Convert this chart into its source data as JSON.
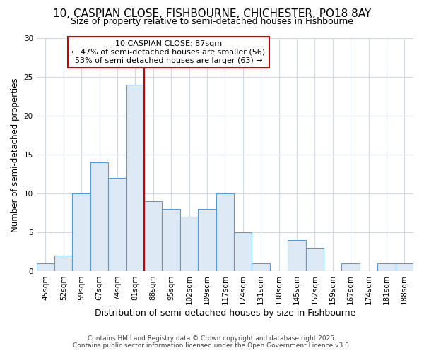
{
  "title1": "10, CASPIAN CLOSE, FISHBOURNE, CHICHESTER, PO18 8AY",
  "title2": "Size of property relative to semi-detached houses in Fishbourne",
  "xlabel": "Distribution of semi-detached houses by size in Fishbourne",
  "ylabel": "Number of semi-detached properties",
  "categories": [
    "45sqm",
    "52sqm",
    "59sqm",
    "67sqm",
    "74sqm",
    "81sqm",
    "88sqm",
    "95sqm",
    "102sqm",
    "109sqm",
    "117sqm",
    "124sqm",
    "131sqm",
    "138sqm",
    "145sqm",
    "152sqm",
    "159sqm",
    "167sqm",
    "174sqm",
    "181sqm",
    "188sqm"
  ],
  "values": [
    1,
    2,
    10,
    14,
    12,
    24,
    9,
    8,
    7,
    8,
    10,
    5,
    1,
    0,
    4,
    3,
    0,
    1,
    0,
    1,
    1
  ],
  "bar_color": "#ddeaf6",
  "bar_edge_color": "#5b9bd5",
  "subject_line_color": "#cc0000",
  "annotation_title": "10 CASPIAN CLOSE: 87sqm",
  "annotation_line1": "← 47% of semi-detached houses are smaller (56)",
  "annotation_line2": "53% of semi-detached houses are larger (63) →",
  "annotation_box_color": "#cc0000",
  "footer1": "Contains HM Land Registry data © Crown copyright and database right 2025.",
  "footer2": "Contains public sector information licensed under the Open Government Licence v3.0.",
  "ylim": [
    0,
    30
  ],
  "bg_color": "#ffffff",
  "plot_bg_color": "#ffffff",
  "grid_color": "#d0d8e8",
  "title1_fontsize": 11,
  "title2_fontsize": 9
}
